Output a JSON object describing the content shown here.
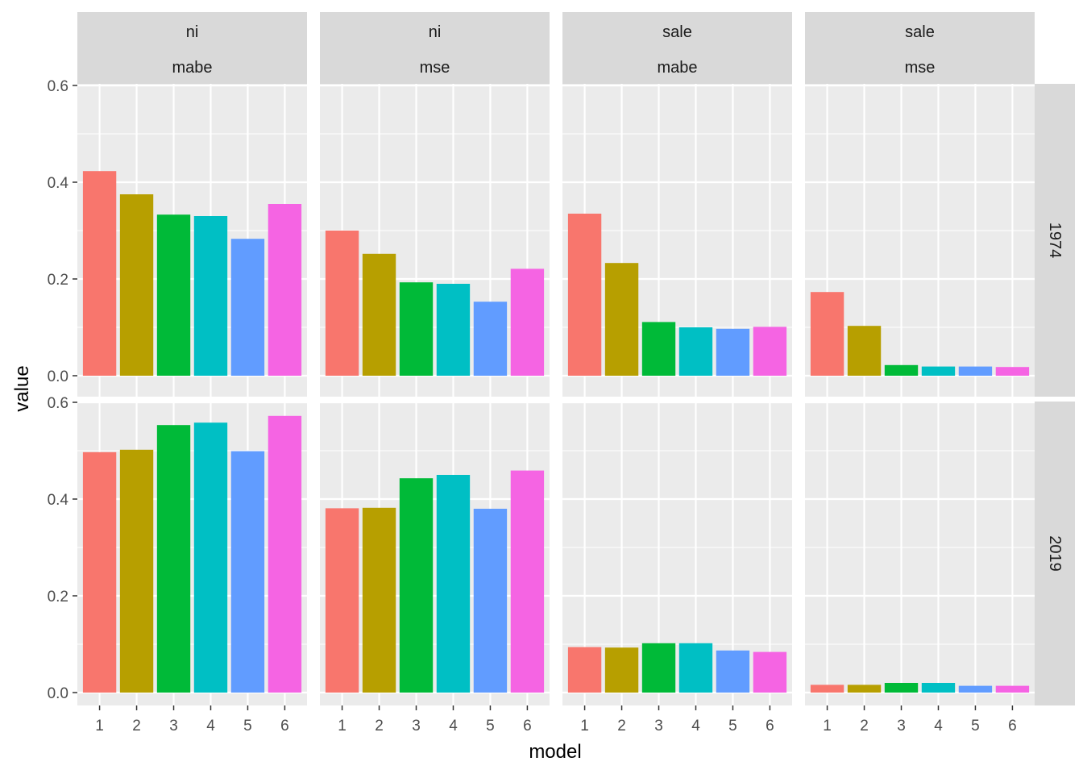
{
  "chart_data": {
    "type": "bar",
    "facet": "grid",
    "xlabel": "model",
    "ylabel": "value",
    "ylim": [
      0,
      0.6
    ],
    "yticks": [
      0.0,
      0.2,
      0.4,
      0.6
    ],
    "ytick_labels": [
      "0.0",
      "0.2",
      "0.4",
      "0.6"
    ],
    "categories": [
      "1",
      "2",
      "3",
      "4",
      "5",
      "6"
    ],
    "colors": {
      "1": "#F8766D",
      "2": "#B79F00",
      "3": "#00BA38",
      "4": "#00BFC4",
      "5": "#619CFF",
      "6": "#F564E3"
    },
    "columns": [
      {
        "var": "ni",
        "metric": "mabe"
      },
      {
        "var": "ni",
        "metric": "mse"
      },
      {
        "var": "sale",
        "metric": "mabe"
      },
      {
        "var": "sale",
        "metric": "mse"
      }
    ],
    "rows": [
      "1974",
      "2019"
    ],
    "panels": [
      {
        "row": "1974",
        "var": "ni",
        "metric": "mabe",
        "values": [
          0.423,
          0.375,
          0.333,
          0.33,
          0.283,
          0.355
        ]
      },
      {
        "row": "1974",
        "var": "ni",
        "metric": "mse",
        "values": [
          0.3,
          0.252,
          0.193,
          0.19,
          0.153,
          0.221
        ]
      },
      {
        "row": "1974",
        "var": "sale",
        "metric": "mabe",
        "values": [
          0.335,
          0.233,
          0.111,
          0.1,
          0.097,
          0.101
        ]
      },
      {
        "row": "1974",
        "var": "sale",
        "metric": "mse",
        "values": [
          0.173,
          0.103,
          0.022,
          0.019,
          0.019,
          0.018
        ]
      },
      {
        "row": "2019",
        "var": "ni",
        "metric": "mabe",
        "values": [
          0.497,
          0.502,
          0.553,
          0.558,
          0.499,
          0.572
        ]
      },
      {
        "row": "2019",
        "var": "ni",
        "metric": "mse",
        "values": [
          0.381,
          0.382,
          0.443,
          0.45,
          0.38,
          0.459
        ]
      },
      {
        "row": "2019",
        "var": "sale",
        "metric": "mabe",
        "values": [
          0.094,
          0.093,
          0.102,
          0.102,
          0.087,
          0.084
        ]
      },
      {
        "row": "2019",
        "var": "sale",
        "metric": "mse",
        "values": [
          0.016,
          0.016,
          0.02,
          0.02,
          0.014,
          0.014
        ]
      }
    ]
  }
}
